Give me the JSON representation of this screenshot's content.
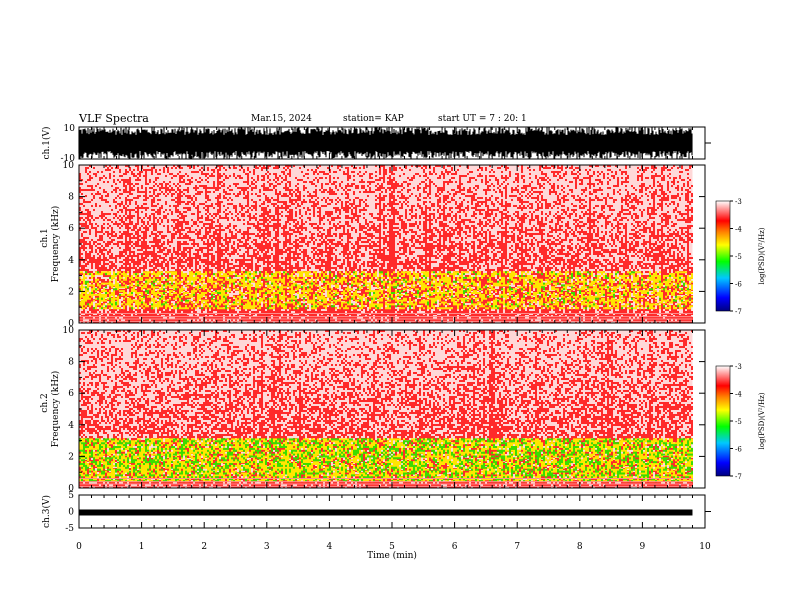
{
  "header": {
    "title": "VLF Spectra",
    "date": "Mar.15, 2024",
    "station": "station= KAP",
    "start_time": "start  UT =   7 : 20: 1"
  },
  "chart_data": [
    {
      "type": "line",
      "panel": "ch1-waveform",
      "ylabel": "ch.1(V)",
      "ylim": [
        -10,
        10
      ],
      "yticks": [
        "10",
        "-10"
      ],
      "color": "#000000",
      "x_range_min": [
        0,
        9.8
      ]
    },
    {
      "type": "heatmap",
      "panel": "ch1-spectrogram",
      "ylabel_top": "ch.1",
      "ylabel": "Frequency (kHz)",
      "ylim": [
        0,
        10
      ],
      "yticks": [
        "0",
        "2",
        "4",
        "6",
        "8",
        "10"
      ],
      "xlim": [
        0,
        10
      ],
      "dominant_bands_khz": [
        [
          1.0,
          3.4
        ]
      ],
      "colorbar": {
        "label": "log(PSD)(V²/Hz)",
        "range": [
          -7,
          -3
        ],
        "ticks": [
          "-3",
          "-4",
          "-5",
          "-6",
          "-7"
        ],
        "colors": [
          "#000080",
          "#0000ff",
          "#00c8ff",
          "#00ff00",
          "#ffff00",
          "#ff8000",
          "#ff0000",
          "#ffffff"
        ]
      }
    },
    {
      "type": "heatmap",
      "panel": "ch2-spectrogram",
      "ylabel_top": "ch.2",
      "ylabel": "Frequency (kHz)",
      "ylim": [
        0,
        10
      ],
      "yticks": [
        "0",
        "2",
        "4",
        "6",
        "8",
        "10"
      ],
      "xlim": [
        0,
        10
      ],
      "dominant_bands_khz": [
        [
          0.5,
          3.2
        ]
      ],
      "colorbar": {
        "label": "log(PSD)(V²/Hz)",
        "range": [
          -7,
          -3
        ],
        "ticks": [
          "-3",
          "-4",
          "-5",
          "-6",
          "-7"
        ],
        "colors": [
          "#000080",
          "#0000ff",
          "#00c8ff",
          "#00ff00",
          "#ffff00",
          "#ff8000",
          "#ff0000",
          "#ffffff"
        ]
      }
    },
    {
      "type": "line",
      "panel": "ch3-waveform",
      "ylabel": "ch.3(V)",
      "ylim": [
        -5,
        5
      ],
      "yticks": [
        "5",
        "0",
        "-5"
      ],
      "level_v": -0.3,
      "color": "#000000",
      "xlabel": "Time  (min)",
      "xlim": [
        0,
        10
      ],
      "xticks": [
        "0",
        "1",
        "2",
        "3",
        "4",
        "5",
        "6",
        "7",
        "8",
        "9",
        "10"
      ]
    }
  ]
}
